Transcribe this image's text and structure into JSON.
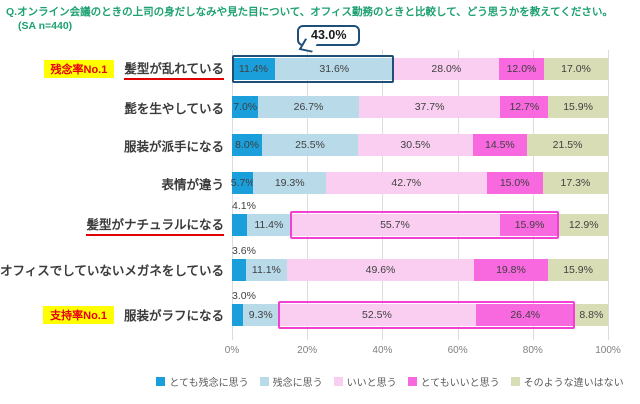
{
  "title": {
    "question": "Q.オンライン会議のときの上司の身だしなみや見た目について、オフィス勤務のときと比較して、どう思うかを教えてください。",
    "sample": "(SA n=440)"
  },
  "callout": {
    "label": "43.0%"
  },
  "colors": {
    "title_text": "#1da170",
    "badge_bg": "#ffff00",
    "badge_text": "#e60012",
    "underline_red": "#e00000",
    "navy_outline": "#1f4e79",
    "magenta_outline": "#f43fd3",
    "gridline": "#dcdcdc"
  },
  "x_axis": {
    "ticks": [
      "0%",
      "20%",
      "40%",
      "60%",
      "80%",
      "100%"
    ],
    "positions": [
      0,
      20,
      40,
      60,
      80,
      100
    ]
  },
  "chart_data": {
    "type": "bar",
    "stacked": true,
    "orientation": "horizontal",
    "xlim": [
      0,
      100
    ],
    "x_unit": "%",
    "legend_position": "bottom",
    "series": [
      {
        "name": "とても残念に思う",
        "color": "#1b9fdb"
      },
      {
        "name": "残念に思う",
        "color": "#b9dae9"
      },
      {
        "name": "いいと思う",
        "color": "#f9cef0"
      },
      {
        "name": "とてもいいと思う",
        "color": "#f868de"
      },
      {
        "name": "そのような違いはない",
        "color": "#d9ddb6"
      }
    ],
    "rows": [
      {
        "label": "髪型が乱れている",
        "badge": "残念率No.1",
        "underlined": true,
        "values": [
          11.4,
          31.6,
          28.0,
          12.0,
          17.0
        ],
        "seg_labels": [
          "11.4%",
          "31.6%",
          "28.0%",
          "12.0%",
          "17.0%"
        ],
        "highlight": {
          "left": 0,
          "width": 43.0,
          "color": "#1f4e79"
        }
      },
      {
        "label": "髭を生やしている",
        "values": [
          7.0,
          26.7,
          37.7,
          12.7,
          15.9
        ],
        "seg_labels": [
          "7.0%",
          "26.7%",
          "37.7%",
          "12.7%",
          "15.9%"
        ]
      },
      {
        "label": "服装が派手になる",
        "values": [
          8.0,
          25.5,
          30.5,
          14.5,
          21.5
        ],
        "seg_labels": [
          "8.0%",
          "25.5%",
          "30.5%",
          "14.5%",
          "21.5%"
        ]
      },
      {
        "label": "表情が違う",
        "values": [
          5.7,
          19.3,
          42.7,
          15.0,
          17.3
        ],
        "seg_labels": [
          "5.7%",
          "19.3%",
          "42.7%",
          "15.0%",
          "17.3%"
        ]
      },
      {
        "label": "髪型がナチュラルになる",
        "underlined": true,
        "outside_first_label": true,
        "values": [
          4.1,
          11.4,
          55.7,
          15.9,
          12.9
        ],
        "seg_labels": [
          "4.1%",
          "11.4%",
          "55.7%",
          "15.9%",
          "12.9%"
        ],
        "highlight": {
          "left": 15.5,
          "width": 71.6,
          "color": "#f43fd3"
        }
      },
      {
        "label": "オフィスでしていないメガネをしている",
        "outside_first_label": true,
        "values": [
          3.6,
          11.1,
          49.6,
          19.8,
          15.9
        ],
        "seg_labels": [
          "3.6%",
          "11.1%",
          "49.6%",
          "19.8%",
          "15.9%"
        ]
      },
      {
        "label": "服装がラフになる",
        "badge": "支持率No.1",
        "outside_first_label": true,
        "values": [
          3.0,
          9.3,
          52.5,
          26.4,
          8.8
        ],
        "seg_labels": [
          "3.0%",
          "9.3%",
          "52.5%",
          "26.4%",
          "8.8%"
        ],
        "highlight": {
          "left": 12.3,
          "width": 78.9,
          "color": "#f43fd3"
        }
      }
    ]
  }
}
